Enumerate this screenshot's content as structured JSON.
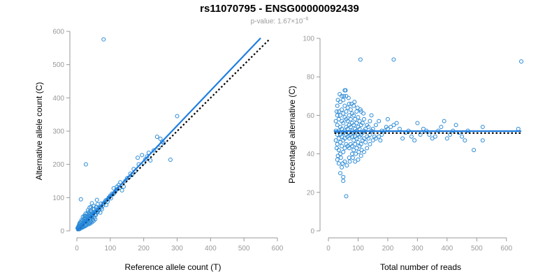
{
  "title": "rs11070795 - ENSG00000092439",
  "subtitle_prefix": "p-value: 1.67×10",
  "subtitle_exponent": "−6",
  "colors": {
    "points": "#2a8ad6",
    "fit": "#1e7ee0",
    "reference": "#000000",
    "axis": "#999999"
  },
  "chart_data": [
    {
      "type": "scatter",
      "xlabel": "Reference allele count (T)",
      "ylabel": "Alternative allele count (C)",
      "xlim": [
        0,
        600
      ],
      "ylim": [
        0,
        600
      ],
      "xticks": [
        0,
        100,
        200,
        300,
        400,
        500,
        600
      ],
      "yticks": [
        0,
        100,
        200,
        300,
        400,
        500,
        600
      ],
      "fit_line": [
        [
          0,
          0
        ],
        [
          550,
          580
        ]
      ],
      "reference_line": [
        [
          0,
          0
        ],
        [
          575,
          575
        ]
      ],
      "points": [
        [
          80,
          576
        ],
        [
          300,
          345
        ],
        [
          27,
          200
        ],
        [
          12,
          95
        ],
        [
          250,
          277
        ],
        [
          240,
          283
        ],
        [
          280,
          214
        ],
        [
          255,
          268
        ],
        [
          210,
          224
        ],
        [
          195,
          228
        ],
        [
          182,
          220
        ],
        [
          220,
          212
        ],
        [
          160,
          172
        ],
        [
          170,
          186
        ],
        [
          150,
          158
        ],
        [
          140,
          133
        ],
        [
          130,
          146
        ],
        [
          120,
          133
        ],
        [
          110,
          128
        ],
        [
          100,
          106
        ],
        [
          95,
          100
        ],
        [
          85,
          90
        ],
        [
          78,
          82
        ],
        [
          70,
          73
        ],
        [
          65,
          70
        ],
        [
          60,
          62
        ],
        [
          55,
          58
        ],
        [
          50,
          53
        ],
        [
          45,
          48
        ],
        [
          42,
          46
        ],
        [
          38,
          40
        ],
        [
          35,
          37
        ],
        [
          32,
          33
        ],
        [
          30,
          31
        ],
        [
          28,
          29
        ],
        [
          25,
          27
        ],
        [
          22,
          24
        ],
        [
          20,
          21
        ],
        [
          18,
          19
        ],
        [
          16,
          17
        ],
        [
          15,
          15
        ],
        [
          13,
          14
        ],
        [
          12,
          12
        ],
        [
          10,
          11
        ],
        [
          9,
          10
        ],
        [
          8,
          9
        ],
        [
          7,
          8
        ],
        [
          6,
          7
        ],
        [
          5,
          6
        ],
        [
          4,
          5
        ],
        [
          60,
          93
        ],
        [
          62,
          80
        ],
        [
          50,
          75
        ],
        [
          48,
          65
        ],
        [
          45,
          83
        ],
        [
          42,
          72
        ],
        [
          40,
          60
        ],
        [
          38,
          70
        ],
        [
          35,
          56
        ],
        [
          33,
          62
        ],
        [
          30,
          50
        ],
        [
          28,
          44
        ],
        [
          26,
          52
        ],
        [
          24,
          38
        ],
        [
          22,
          45
        ],
        [
          20,
          36
        ],
        [
          18,
          42
        ],
        [
          16,
          30
        ],
        [
          14,
          33
        ],
        [
          12,
          27
        ],
        [
          10,
          22
        ],
        [
          9,
          25
        ],
        [
          8,
          18
        ],
        [
          7,
          20
        ],
        [
          6,
          15
        ],
        [
          5,
          14
        ],
        [
          4,
          12
        ],
        [
          3,
          10
        ],
        [
          2,
          8
        ],
        [
          55,
          35
        ],
        [
          52,
          40
        ],
        [
          50,
          30
        ],
        [
          48,
          34
        ],
        [
          45,
          26
        ],
        [
          42,
          28
        ],
        [
          40,
          22
        ],
        [
          38,
          25
        ],
        [
          35,
          20
        ],
        [
          33,
          24
        ],
        [
          30,
          18
        ],
        [
          28,
          20
        ],
        [
          26,
          15
        ],
        [
          24,
          17
        ],
        [
          22,
          13
        ],
        [
          20,
          14
        ],
        [
          18,
          11
        ],
        [
          16,
          12
        ],
        [
          14,
          9
        ],
        [
          12,
          10
        ],
        [
          10,
          7
        ],
        [
          9,
          8
        ],
        [
          8,
          6
        ],
        [
          7,
          5
        ],
        [
          70,
          55
        ],
        [
          75,
          65
        ],
        [
          72,
          82
        ],
        [
          88,
          78
        ],
        [
          92,
          88
        ],
        [
          105,
          112
        ],
        [
          115,
          118
        ],
        [
          125,
          138
        ],
        [
          135,
          122
        ],
        [
          145,
          150
        ],
        [
          155,
          160
        ],
        [
          165,
          168
        ],
        [
          175,
          180
        ],
        [
          185,
          200
        ],
        [
          200,
          205
        ],
        [
          205,
          215
        ],
        [
          215,
          235
        ],
        [
          230,
          242
        ],
        [
          245,
          250
        ],
        [
          260,
          264
        ],
        [
          25,
          45
        ],
        [
          35,
          45
        ],
        [
          40,
          35
        ],
        [
          45,
          42
        ],
        [
          55,
          50
        ],
        [
          60,
          55
        ],
        [
          65,
          62
        ],
        [
          58,
          72
        ],
        [
          52,
          66
        ],
        [
          44,
          58
        ],
        [
          36,
          50
        ],
        [
          30,
          40
        ],
        [
          27,
          35
        ],
        [
          23,
          30
        ],
        [
          19,
          26
        ],
        [
          17,
          22
        ],
        [
          13,
          18
        ],
        [
          11,
          16
        ],
        [
          8,
          13
        ],
        [
          6,
          10
        ],
        [
          32,
          42
        ],
        [
          38,
          44
        ],
        [
          43,
          52
        ],
        [
          47,
          45
        ],
        [
          53,
          56
        ],
        [
          57,
          48
        ],
        [
          63,
          58
        ],
        [
          67,
          64
        ],
        [
          73,
          70
        ],
        [
          77,
          75
        ],
        [
          82,
          84
        ],
        [
          87,
          92
        ],
        [
          93,
          95
        ],
        [
          98,
          102
        ],
        [
          102,
          98
        ],
        [
          108,
          110
        ],
        [
          112,
          114
        ],
        [
          118,
          124
        ],
        [
          122,
          126
        ],
        [
          128,
          130
        ]
      ]
    },
    {
      "type": "scatter",
      "xlabel": "Total number of reads",
      "ylabel": "Percentage alternative (C)",
      "xlim": [
        0,
        650
      ],
      "ylim": [
        0,
        100
      ],
      "xticks": [
        0,
        100,
        200,
        300,
        400,
        500,
        600
      ],
      "yticks": [
        0,
        20,
        40,
        60,
        80,
        100
      ],
      "fit_line": [
        [
          20,
          51.8
        ],
        [
          650,
          51.8
        ]
      ],
      "reference_line": [
        [
          20,
          50.8
        ],
        [
          650,
          50.8
        ]
      ],
      "points": [
        [
          650,
          88
        ],
        [
          220,
          89
        ],
        [
          108,
          89
        ],
        [
          60,
          18
        ],
        [
          50,
          26
        ],
        [
          50,
          28
        ],
        [
          40,
          30
        ],
        [
          45,
          33
        ],
        [
          35,
          35
        ],
        [
          30,
          37
        ],
        [
          55,
          36
        ],
        [
          70,
          38
        ],
        [
          80,
          40
        ],
        [
          90,
          36
        ],
        [
          100,
          37
        ],
        [
          110,
          39
        ],
        [
          120,
          41
        ],
        [
          130,
          43
        ],
        [
          140,
          45
        ],
        [
          150,
          47
        ],
        [
          160,
          48
        ],
        [
          170,
          49
        ],
        [
          180,
          50
        ],
        [
          190,
          52
        ],
        [
          200,
          53
        ],
        [
          210,
          54
        ],
        [
          220,
          55
        ],
        [
          230,
          56
        ],
        [
          240,
          53
        ],
        [
          250,
          48
        ],
        [
          260,
          51
        ],
        [
          270,
          52
        ],
        [
          280,
          49
        ],
        [
          290,
          47
        ],
        [
          300,
          56
        ],
        [
          310,
          50
        ],
        [
          320,
          53
        ],
        [
          330,
          52
        ],
        [
          340,
          50
        ],
        [
          350,
          48
        ],
        [
          360,
          49
        ],
        [
          370,
          52
        ],
        [
          380,
          54
        ],
        [
          390,
          57
        ],
        [
          400,
          48
        ],
        [
          410,
          50
        ],
        [
          420,
          52
        ],
        [
          430,
          55
        ],
        [
          440,
          51
        ],
        [
          450,
          49
        ],
        [
          460,
          47
        ],
        [
          470,
          52
        ],
        [
          490,
          42
        ],
        [
          520,
          54
        ],
        [
          520,
          47
        ],
        [
          640,
          53
        ],
        [
          30,
          45
        ],
        [
          30,
          50
        ],
        [
          30,
          55
        ],
        [
          30,
          60
        ],
        [
          30,
          65
        ],
        [
          35,
          42
        ],
        [
          35,
          48
        ],
        [
          35,
          52
        ],
        [
          35,
          58
        ],
        [
          35,
          62
        ],
        [
          40,
          40
        ],
        [
          40,
          46
        ],
        [
          40,
          50
        ],
        [
          40,
          54
        ],
        [
          40,
          60
        ],
        [
          40,
          67
        ],
        [
          45,
          44
        ],
        [
          45,
          49
        ],
        [
          45,
          53
        ],
        [
          45,
          57
        ],
        [
          45,
          63
        ],
        [
          45,
          70
        ],
        [
          50,
          41
        ],
        [
          50,
          47
        ],
        [
          50,
          51
        ],
        [
          50,
          56
        ],
        [
          50,
          61
        ],
        [
          50,
          68
        ],
        [
          55,
          43
        ],
        [
          55,
          48
        ],
        [
          55,
          52
        ],
        [
          55,
          59
        ],
        [
          55,
          65
        ],
        [
          55,
          73
        ],
        [
          60,
          45
        ],
        [
          60,
          50
        ],
        [
          60,
          54
        ],
        [
          60,
          58
        ],
        [
          60,
          62
        ],
        [
          60,
          70
        ],
        [
          65,
          44
        ],
        [
          65,
          49
        ],
        [
          65,
          53
        ],
        [
          65,
          57
        ],
        [
          65,
          64
        ],
        [
          70,
          43
        ],
        [
          70,
          48
        ],
        [
          70,
          51
        ],
        [
          70,
          55
        ],
        [
          70,
          60
        ],
        [
          70,
          66
        ],
        [
          75,
          45
        ],
        [
          75,
          50
        ],
        [
          75,
          54
        ],
        [
          75,
          58
        ],
        [
          75,
          63
        ],
        [
          80,
          44
        ],
        [
          80,
          49
        ],
        [
          80,
          52
        ],
        [
          80,
          56
        ],
        [
          80,
          61
        ],
        [
          85,
          42
        ],
        [
          85,
          47
        ],
        [
          85,
          51
        ],
        [
          85,
          55
        ],
        [
          85,
          60
        ],
        [
          85,
          65
        ],
        [
          90,
          45
        ],
        [
          90,
          49
        ],
        [
          90,
          53
        ],
        [
          90,
          58
        ],
        [
          95,
          43
        ],
        [
          95,
          48
        ],
        [
          95,
          52
        ],
        [
          95,
          56
        ],
        [
          95,
          62
        ],
        [
          100,
          46
        ],
        [
          100,
          50
        ],
        [
          100,
          54
        ],
        [
          100,
          59
        ],
        [
          105,
          44
        ],
        [
          105,
          49
        ],
        [
          105,
          53
        ],
        [
          105,
          57
        ],
        [
          110,
          45
        ],
        [
          110,
          50
        ],
        [
          110,
          55
        ],
        [
          110,
          62
        ],
        [
          115,
          47
        ],
        [
          115,
          51
        ],
        [
          115,
          56
        ],
        [
          120,
          48
        ],
        [
          120,
          52
        ],
        [
          120,
          58
        ],
        [
          125,
          46
        ],
        [
          125,
          53
        ],
        [
          130,
          49
        ],
        [
          130,
          55
        ],
        [
          135,
          48
        ],
        [
          135,
          54
        ],
        [
          140,
          50
        ],
        [
          140,
          57
        ],
        [
          145,
          52
        ],
        [
          145,
          60
        ],
        [
          150,
          53
        ],
        [
          155,
          49
        ],
        [
          160,
          55
        ],
        [
          170,
          57
        ],
        [
          175,
          47
        ],
        [
          180,
          52
        ],
        [
          195,
          54
        ],
        [
          200,
          58
        ],
        [
          25,
          47
        ],
        [
          25,
          52
        ],
        [
          25,
          57
        ],
        [
          28,
          43
        ],
        [
          28,
          62
        ],
        [
          32,
          39
        ],
        [
          32,
          68
        ],
        [
          38,
          71
        ],
        [
          42,
          38
        ],
        [
          48,
          35
        ],
        [
          52,
          70
        ],
        [
          58,
          73
        ],
        [
          62,
          34
        ],
        [
          68,
          69
        ],
        [
          72,
          36
        ],
        [
          78,
          66
        ],
        [
          82,
          38
        ],
        [
          88,
          67
        ],
        [
          92,
          40
        ],
        [
          98,
          64
        ],
        [
          102,
          41
        ],
        [
          108,
          63
        ],
        [
          112,
          42
        ],
        [
          118,
          61
        ]
      ]
    }
  ]
}
